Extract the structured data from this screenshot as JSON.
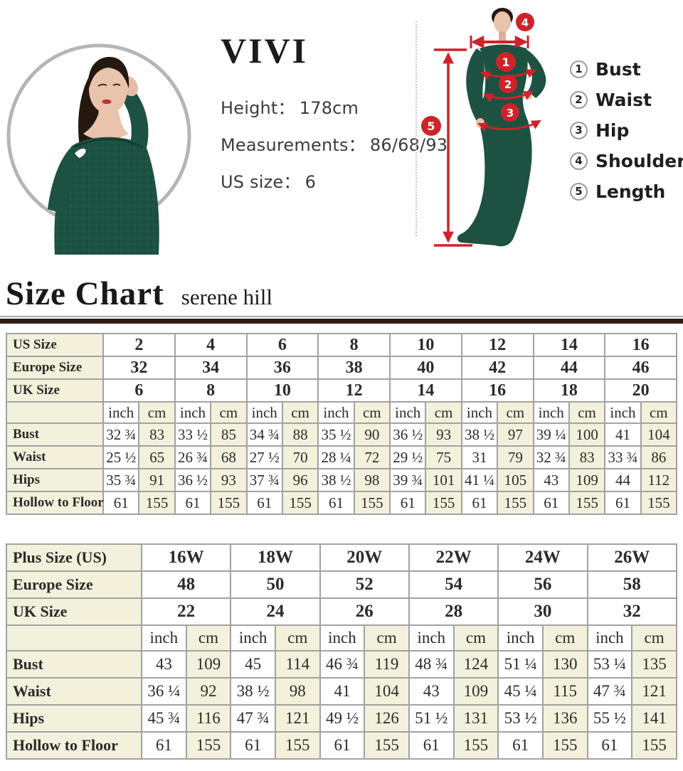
{
  "model_card": {
    "brand": "VIVI",
    "lines": [
      {
        "label": "Height：",
        "value": "178cm"
      },
      {
        "label": "Measurements：",
        "value": "86/68/93"
      },
      {
        "label": "US size：",
        "value": "6"
      }
    ]
  },
  "diagram": {
    "markers": [
      "1",
      "2",
      "3",
      "4",
      "5"
    ],
    "legend": [
      {
        "num": "1",
        "label": "Bust"
      },
      {
        "num": "2",
        "label": "Waist"
      },
      {
        "num": "3",
        "label": "Hip"
      },
      {
        "num": "4",
        "label": "Shoulder"
      },
      {
        "num": "5",
        "label": "Length"
      }
    ]
  },
  "heading": {
    "title": "Size Chart",
    "subtitle": "serene hill"
  },
  "tables": [
    {
      "name": "standard-sizes",
      "unit_inch": "inch",
      "unit_cm": "cm",
      "size_rows": [
        {
          "label": "US Size",
          "values": [
            "2",
            "4",
            "6",
            "8",
            "10",
            "12",
            "14",
            "16"
          ]
        },
        {
          "label": "Europe Size",
          "values": [
            "32",
            "34",
            "36",
            "38",
            "40",
            "42",
            "44",
            "46"
          ]
        },
        {
          "label": "UK Size",
          "values": [
            "6",
            "8",
            "10",
            "12",
            "14",
            "16",
            "18",
            "20"
          ]
        }
      ],
      "measure_rows": [
        {
          "label": "Bust",
          "pairs": [
            [
              "32 ¾",
              "83"
            ],
            [
              "33 ½",
              "85"
            ],
            [
              "34 ¾",
              "88"
            ],
            [
              "35 ½",
              "90"
            ],
            [
              "36 ½",
              "93"
            ],
            [
              "38 ½",
              "97"
            ],
            [
              "39 ¼",
              "100"
            ],
            [
              "41",
              "104"
            ]
          ]
        },
        {
          "label": "Waist",
          "pairs": [
            [
              "25 ½",
              "65"
            ],
            [
              "26 ¾",
              "68"
            ],
            [
              "27 ½",
              "70"
            ],
            [
              "28 ¼",
              "72"
            ],
            [
              "29 ½",
              "75"
            ],
            [
              "31",
              "79"
            ],
            [
              "32 ¾",
              "83"
            ],
            [
              "33 ¾",
              "86"
            ]
          ]
        },
        {
          "label": "Hips",
          "pairs": [
            [
              "35 ¾",
              "91"
            ],
            [
              "36 ½",
              "93"
            ],
            [
              "37 ¾",
              "96"
            ],
            [
              "38 ½",
              "98"
            ],
            [
              "39 ¾",
              "101"
            ],
            [
              "41 ¼",
              "105"
            ],
            [
              "43",
              "109"
            ],
            [
              "44",
              "112"
            ]
          ]
        },
        {
          "label": "Hollow to Floor",
          "pairs": [
            [
              "61",
              "155"
            ],
            [
              "61",
              "155"
            ],
            [
              "61",
              "155"
            ],
            [
              "61",
              "155"
            ],
            [
              "61",
              "155"
            ],
            [
              "61",
              "155"
            ],
            [
              "61",
              "155"
            ],
            [
              "61",
              "155"
            ]
          ]
        }
      ]
    },
    {
      "name": "plus-sizes",
      "unit_inch": "inch",
      "unit_cm": "cm",
      "size_rows": [
        {
          "label": "Plus Size (US)",
          "values": [
            "16W",
            "18W",
            "20W",
            "22W",
            "24W",
            "26W"
          ]
        },
        {
          "label": "Europe Size",
          "values": [
            "48",
            "50",
            "52",
            "54",
            "56",
            "58"
          ]
        },
        {
          "label": "UK Size",
          "values": [
            "22",
            "24",
            "26",
            "28",
            "30",
            "32"
          ]
        }
      ],
      "measure_rows": [
        {
          "label": "Bust",
          "pairs": [
            [
              "43",
              "109"
            ],
            [
              "45",
              "114"
            ],
            [
              "46 ¾",
              "119"
            ],
            [
              "48 ¾",
              "124"
            ],
            [
              "51 ¼",
              "130"
            ],
            [
              "53 ¼",
              "135"
            ]
          ]
        },
        {
          "label": "Waist",
          "pairs": [
            [
              "36 ¼",
              "92"
            ],
            [
              "38 ½",
              "98"
            ],
            [
              "41",
              "104"
            ],
            [
              "43",
              "109"
            ],
            [
              "45 ¼",
              "115"
            ],
            [
              "47 ¾",
              "121"
            ]
          ]
        },
        {
          "label": "Hips",
          "pairs": [
            [
              "45 ¾",
              "116"
            ],
            [
              "47 ¾",
              "121"
            ],
            [
              "49 ½",
              "126"
            ],
            [
              "51 ½",
              "131"
            ],
            [
              "53 ½",
              "136"
            ],
            [
              "55 ½",
              "141"
            ]
          ]
        },
        {
          "label": "Hollow to Floor",
          "pairs": [
            [
              "61",
              "155"
            ],
            [
              "61",
              "155"
            ],
            [
              "61",
              "155"
            ],
            [
              "61",
              "155"
            ],
            [
              "61",
              "155"
            ],
            [
              "61",
              "155"
            ]
          ]
        }
      ]
    }
  ],
  "colors": {
    "accent_red": "#cd2329",
    "dress_green": "#1d5242",
    "cell_cream": "#f3f0dc",
    "rule_dark": "#2e1d12",
    "grid_gray": "#a2a2a2"
  }
}
